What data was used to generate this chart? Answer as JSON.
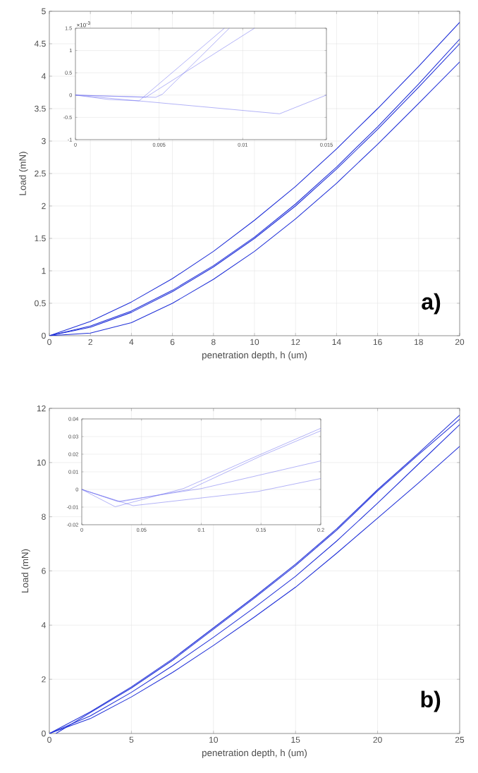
{
  "chart_data": [
    {
      "type": "line",
      "xlabel": "penetration depth, h (um)",
      "ylabel": "Load (mN)",
      "xlim": [
        0,
        20
      ],
      "ylim": [
        0,
        5
      ],
      "xticks": [
        0,
        2,
        4,
        6,
        8,
        10,
        12,
        14,
        16,
        18,
        20
      ],
      "yticks": [
        0,
        0.5,
        1,
        1.5,
        2,
        2.5,
        3,
        3.5,
        4,
        4.5,
        5
      ],
      "grid": true,
      "annotations": [
        "a)"
      ],
      "x": [
        0,
        2,
        4,
        6,
        8,
        10,
        12,
        14,
        16,
        18,
        20
      ],
      "series": [
        {
          "color": "#1f2fd8",
          "values": [
            0,
            0.22,
            0.52,
            0.88,
            1.3,
            1.78,
            2.3,
            2.88,
            3.5,
            4.15,
            4.83
          ]
        },
        {
          "color": "#1f2fd8",
          "values": [
            0,
            0.15,
            0.38,
            0.7,
            1.08,
            1.52,
            2.03,
            2.6,
            3.22,
            3.88,
            4.57
          ]
        },
        {
          "color": "#1f2fd8",
          "values": [
            0,
            0.13,
            0.36,
            0.68,
            1.06,
            1.5,
            2.0,
            2.57,
            3.18,
            3.83,
            4.5
          ]
        },
        {
          "color": "#1f2fd8",
          "values": [
            0,
            0.04,
            0.2,
            0.5,
            0.87,
            1.3,
            1.8,
            2.35,
            2.95,
            3.58,
            4.22
          ]
        }
      ]
    },
    {
      "type": "line",
      "xlim": [
        0,
        0.015
      ],
      "ylim": [
        -1,
        1.5
      ],
      "xticks": [
        0,
        0.005,
        0.01,
        0.015
      ],
      "yticks": [
        -1,
        -0.5,
        0,
        0.5,
        1,
        1.5
      ],
      "grid": true,
      "annotations": [
        "×10$^{-3}$"
      ],
      "series": [
        {
          "color": "#7070f0",
          "x": [
            0,
            0.002,
            0.0038,
            0.0089
          ],
          "values": [
            0,
            -0.1,
            -0.13,
            1.5
          ]
        },
        {
          "color": "#7070f0",
          "x": [
            0,
            0.0048,
            0.0052,
            0.0092
          ],
          "values": [
            0,
            -0.05,
            0.02,
            1.5
          ]
        },
        {
          "color": "#7070f0",
          "x": [
            0,
            0.0042,
            0.0107
          ],
          "values": [
            0,
            -0.05,
            1.5
          ]
        },
        {
          "color": "#7070f0",
          "x": [
            0,
            0.0122,
            0.015
          ],
          "values": [
            0,
            -0.42,
            0
          ]
        }
      ]
    },
    {
      "type": "line",
      "xlabel": "penetration depth, h (um)",
      "ylabel": "Load (mN)",
      "xlim": [
        0,
        25
      ],
      "ylim": [
        0,
        12
      ],
      "xticks": [
        0,
        5,
        10,
        15,
        20,
        25
      ],
      "yticks": [
        0,
        2,
        4,
        6,
        8,
        10,
        12
      ],
      "grid": true,
      "annotations": [
        "b)"
      ],
      "x": [
        0,
        2.5,
        5,
        7.5,
        10,
        12.5,
        15,
        17.5,
        20,
        22.5,
        25
      ],
      "series": [
        {
          "color": "#1f2fd8",
          "values": [
            0,
            0.8,
            1.72,
            2.75,
            3.9,
            5.05,
            6.25,
            7.55,
            9.0,
            10.35,
            11.75
          ]
        },
        {
          "color": "#1f2fd8",
          "x": [
            0.4,
            2.5,
            5,
            7.5,
            10,
            12.5,
            15,
            17.5,
            20,
            22.5,
            25
          ],
          "values": [
            0,
            0.77,
            1.68,
            2.7,
            3.85,
            5.0,
            6.2,
            7.5,
            8.95,
            10.3,
            11.6
          ]
        },
        {
          "color": "#1f2fd8",
          "values": [
            0,
            0.65,
            1.52,
            2.5,
            3.55,
            4.65,
            5.8,
            7.1,
            8.5,
            9.95,
            11.4
          ]
        },
        {
          "color": "#1f2fd8",
          "values": [
            0,
            0.55,
            1.35,
            2.25,
            3.25,
            4.3,
            5.4,
            6.65,
            7.95,
            9.25,
            10.6
          ]
        }
      ]
    },
    {
      "type": "line",
      "xlim": [
        0,
        0.2
      ],
      "ylim": [
        -0.02,
        0.04
      ],
      "xticks": [
        0,
        0.05,
        0.1,
        0.15,
        0.2
      ],
      "yticks": [
        -0.02,
        -0.01,
        0,
        0.01,
        0.02,
        0.03,
        0.04
      ],
      "grid": true,
      "series": [
        {
          "color": "#7070f0",
          "x": [
            0,
            0.028,
            0.085,
            0.15,
            0.2
          ],
          "values": [
            0,
            -0.0098,
            0.0005,
            0.02,
            0.0347
          ]
        },
        {
          "color": "#7070f0",
          "x": [
            0,
            0.032,
            0.09,
            0.15,
            0.2
          ],
          "values": [
            0,
            -0.007,
            0,
            0.019,
            0.0333
          ]
        },
        {
          "color": "#7070f0",
          "x": [
            0,
            0.043,
            0.147,
            0.2
          ],
          "values": [
            0,
            -0.0092,
            -0.0012,
            0.0062
          ]
        },
        {
          "color": "#7070f0",
          "x": [
            0,
            0.03,
            0.1,
            0.2
          ],
          "values": [
            0,
            -0.0068,
            0.0005,
            0.0162
          ]
        }
      ]
    }
  ]
}
